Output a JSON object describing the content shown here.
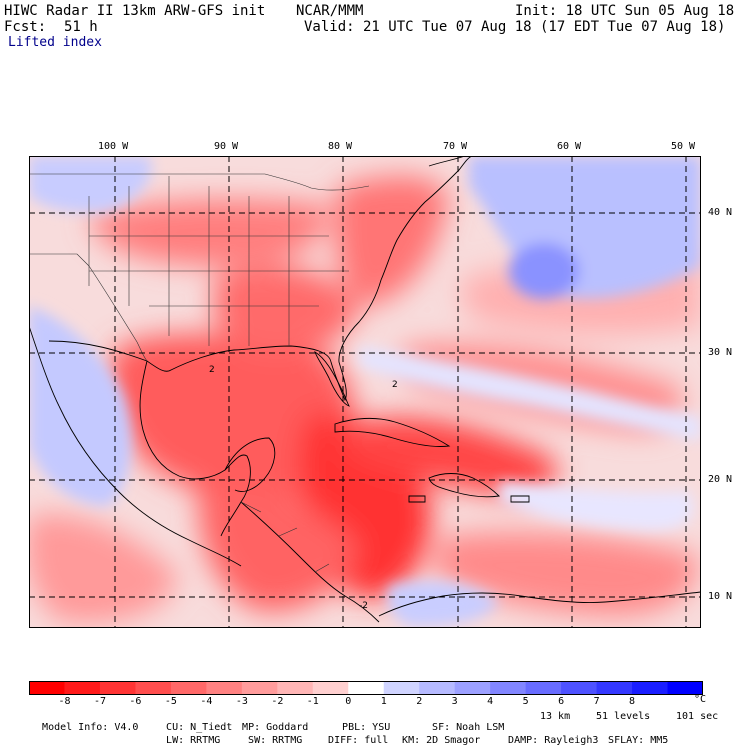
{
  "header": {
    "title": "HIWC Radar II 13km ARW-GFS init",
    "org": "NCAR/MMM",
    "init": "Init: 18 UTC Sun 05 Aug 18",
    "fcst_label": "Fcst:",
    "fcst_value": "51 h",
    "valid": "Valid: 21 UTC Tue 07 Aug 18 (17 EDT Tue 07 Aug 18)",
    "field": "Lifted index"
  },
  "map": {
    "lon_labels": [
      "100 W",
      "90 W",
      "80 W",
      "70 W",
      "60 W",
      "50 W"
    ],
    "lat_labels": [
      "40 N",
      "30 N",
      "20 N",
      "10 N"
    ],
    "contour_labels": [
      "2",
      "2",
      "-2"
    ]
  },
  "colorbar": {
    "labels": [
      "-8",
      "-7",
      "-6",
      "-5",
      "-4",
      "-3",
      "-2",
      "-1",
      "0",
      "1",
      "2",
      "3",
      "4",
      "5",
      "6",
      "7",
      "8"
    ],
    "unit": "°C",
    "colors": [
      "#ff0000",
      "#ff1a1a",
      "#ff3434",
      "#ff4e4e",
      "#ff6868",
      "#ff8282",
      "#ff9c9c",
      "#ffb6b6",
      "#ffd0d0",
      "#ffffff",
      "#d0d4ff",
      "#b6baff",
      "#9ca0ff",
      "#8286ff",
      "#686cff",
      "#4e52ff",
      "#3438ff",
      "#1a1eff",
      "#0000ff"
    ]
  },
  "footer": {
    "line1": [
      {
        "k": "Model Info:",
        "v": "V4.0"
      },
      {
        "k": "CU:",
        "v": "N_Tiedt"
      },
      {
        "k": "MP:",
        "v": "Goddard"
      },
      {
        "k": "PBL:",
        "v": "YSU"
      },
      {
        "k": "SF:",
        "v": "Noah LSM"
      },
      {
        "k": "",
        "v": "13 km"
      },
      {
        "k": "",
        "v": "51 levels"
      },
      {
        "k": "",
        "v": "101 sec"
      }
    ],
    "line2": [
      {
        "k": "LW:",
        "v": "RRTMG"
      },
      {
        "k": "SW:",
        "v": "RRTMG"
      },
      {
        "k": "DIFF:",
        "v": "full"
      },
      {
        "k": "KM:",
        "v": "2D Smagor"
      },
      {
        "k": "DAMP:",
        "v": "Rayleigh3"
      },
      {
        "k": "SFLAY:",
        "v": "MM5"
      }
    ]
  }
}
